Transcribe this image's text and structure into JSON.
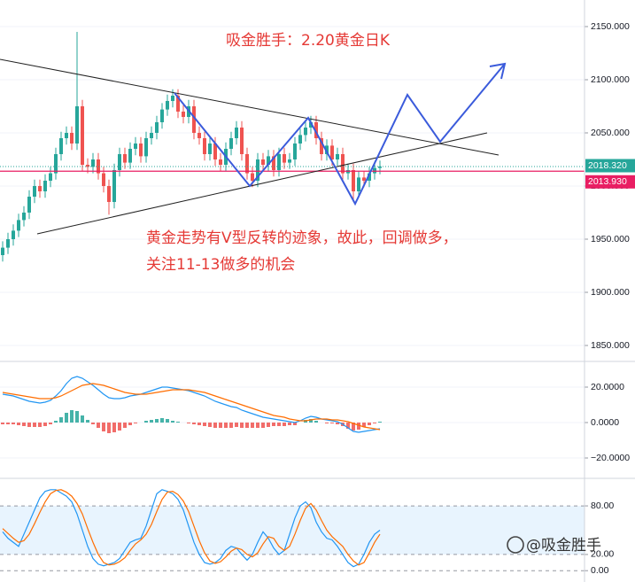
{
  "chart_data": [
    {
      "type": "candlestick",
      "title": "吸金胜手：2.20黄金日K",
      "annotations": [
        "黄金走势有V型反转的迹象，故此，回调做多，",
        "关注11-13做多的机会"
      ],
      "up_color": "#26a69a",
      "down_color": "#ef5350",
      "open": [
        1935,
        1942,
        1950,
        1958,
        1968,
        1975,
        1990,
        2000,
        1995,
        2005,
        2012,
        2030,
        2045,
        2050,
        2040,
        2075,
        2020,
        2018,
        2025,
        2012,
        2000,
        1985,
        2015,
        2030,
        2022,
        2035,
        2040,
        2028,
        2045,
        2050,
        2060,
        2072,
        2080,
        2085,
        2070,
        2065,
        2075,
        2050,
        2045,
        2030,
        2040,
        2025,
        2020,
        2035,
        2045,
        2055,
        2030,
        2012,
        2005,
        2025,
        2020,
        2028,
        2015,
        2030,
        2022,
        2025,
        2040,
        2048,
        2055,
        2060,
        2045,
        2030,
        2038,
        2025,
        2030,
        2012,
        2015,
        1995,
        2008,
        2005,
        2012,
        2017
      ],
      "high": [
        1948,
        1956,
        1964,
        1974,
        1981,
        1996,
        2006,
        2006,
        2011,
        2018,
        2036,
        2051,
        2056,
        2056,
        2145,
        2081,
        2026,
        2031,
        2031,
        2018,
        2006,
        2021,
        2036,
        2036,
        2041,
        2046,
        2046,
        2051,
        2056,
        2066,
        2078,
        2086,
        2091,
        2091,
        2076,
        2081,
        2081,
        2056,
        2051,
        2046,
        2046,
        2031,
        2041,
        2051,
        2061,
        2061,
        2036,
        2018,
        2031,
        2031,
        2034,
        2034,
        2036,
        2036,
        2031,
        2046,
        2054,
        2061,
        2066,
        2066,
        2051,
        2044,
        2044,
        2036,
        2036,
        2021,
        2021,
        2014,
        2014,
        2018,
        2023,
        2024
      ],
      "low": [
        1929,
        1936,
        1944,
        1952,
        1962,
        1969,
        1984,
        1989,
        1989,
        1999,
        2006,
        2024,
        2039,
        2034,
        2034,
        2014,
        2012,
        2012,
        2006,
        1994,
        1973,
        1979,
        2009,
        2016,
        2016,
        2029,
        2022,
        2022,
        2039,
        2044,
        2054,
        2066,
        2074,
        2064,
        2059,
        2059,
        2044,
        2039,
        2024,
        2024,
        2019,
        2014,
        2014,
        2029,
        2039,
        2024,
        2006,
        1999,
        1999,
        2014,
        2014,
        2009,
        2009,
        2016,
        2016,
        2019,
        2034,
        2042,
        2049,
        2039,
        2024,
        2024,
        2019,
        2019,
        2006,
        2006,
        1985,
        1989,
        1999,
        1999,
        2006,
        2011
      ],
      "close": [
        1942,
        1950,
        1958,
        1968,
        1975,
        1990,
        2000,
        1995,
        2005,
        2012,
        2030,
        2045,
        2050,
        2040,
        2075,
        2020,
        2018,
        2025,
        2012,
        2000,
        1985,
        2015,
        2030,
        2022,
        2035,
        2040,
        2028,
        2045,
        2050,
        2060,
        2072,
        2080,
        2085,
        2070,
        2065,
        2075,
        2050,
        2045,
        2030,
        2040,
        2025,
        2020,
        2035,
        2045,
        2055,
        2030,
        2012,
        2005,
        2025,
        2020,
        2028,
        2015,
        2030,
        2022,
        2025,
        2040,
        2048,
        2055,
        2060,
        2045,
        2030,
        2038,
        2025,
        2030,
        2012,
        2015,
        1995,
        2008,
        2005,
        2012,
        2017,
        2018.32
      ],
      "price_lines": [
        {
          "value": 2018.32,
          "label": "2018.320",
          "color": "#26a69a",
          "style": "dotted"
        },
        {
          "value": 2013.93,
          "label": "2013.930",
          "color": "#e91e63",
          "style": "solid"
        }
      ],
      "ylim": [
        1835,
        2175
      ],
      "yticks": [
        {
          "value": 2150,
          "label": "2150.000"
        },
        {
          "value": 2100,
          "label": "2100.000"
        },
        {
          "value": 2050,
          "label": "2050.000"
        },
        {
          "value": 2000,
          "label": "2000.000"
        },
        {
          "value": 1950,
          "label": "1950.000"
        },
        {
          "value": 1900,
          "label": "1900.000"
        },
        {
          "value": 1850,
          "label": "1850.000"
        }
      ],
      "grid": "solid"
    },
    {
      "type": "macd",
      "series": [
        {
          "color": "#2196f3",
          "values": [
            16,
            15.5,
            15,
            14,
            13,
            12,
            11.5,
            11,
            11.5,
            12.5,
            15,
            18,
            22,
            25,
            26,
            25,
            23,
            21,
            18.5,
            16,
            14,
            13.5,
            13.5,
            14,
            15,
            15.5,
            16,
            17,
            18,
            19,
            20,
            20,
            19.5,
            19,
            18.5,
            18,
            17,
            16,
            15,
            13.5,
            12,
            11,
            10,
            9,
            8.5,
            7,
            6,
            5,
            4,
            3,
            2.5,
            2,
            1.5,
            1,
            0.5,
            0,
            1,
            2.5,
            3.5,
            3,
            2,
            1.5,
            1,
            0.5,
            -1,
            -3,
            -5,
            -5.5,
            -5,
            -4.5,
            -4,
            -3.5
          ]
        },
        {
          "color": "#ff6d00",
          "values": [
            17,
            16.5,
            16,
            15.5,
            15,
            14.5,
            14,
            13.5,
            13.5,
            13.5,
            14,
            15,
            16.5,
            18,
            19.5,
            21,
            21.5,
            22,
            21.5,
            21,
            20,
            19,
            18,
            17,
            16.5,
            16,
            16,
            16,
            16.5,
            17,
            17.5,
            18,
            18.5,
            18.5,
            18.5,
            18.5,
            18,
            17.5,
            17,
            16,
            15,
            14,
            13,
            12,
            11,
            10,
            9,
            8,
            7,
            6,
            5,
            4,
            3.5,
            3,
            2,
            1.5,
            1,
            1,
            1.5,
            2,
            2,
            2,
            1.5,
            1.5,
            1,
            0.5,
            -0.5,
            -1.5,
            -2.5,
            -3,
            -3.5,
            -4
          ]
        }
      ],
      "histogram": {
        "up_color": "#26a69a",
        "down_color": "#ef5350",
        "values": [
          -1,
          -1,
          -1,
          -1.5,
          -2,
          -2.5,
          -2.5,
          -2.5,
          -2,
          -1,
          1,
          3,
          5.5,
          7,
          6.5,
          4,
          1.5,
          -1,
          -3,
          -5,
          -6,
          -5.5,
          -4.5,
          -3,
          -1.5,
          -0.5,
          0,
          1,
          1.5,
          2,
          2.5,
          2,
          1,
          0.5,
          0,
          -0.5,
          -1,
          -1.5,
          -2,
          -2.5,
          -3,
          -3,
          -3,
          -3,
          -2.5,
          -3,
          -3,
          -3,
          -3,
          -3,
          -2.5,
          -2,
          -2,
          -2,
          -1.5,
          -1.5,
          0,
          1.5,
          2,
          1,
          0,
          -0.5,
          -0.5,
          -1,
          -2,
          -3.5,
          -4.5,
          -4,
          -2.5,
          -1.5,
          -0.5,
          0.5
        ]
      },
      "ylim": [
        -31.5,
        34.5
      ],
      "yticks": [
        {
          "value": 20,
          "label": "20.0000"
        },
        {
          "value": 0,
          "label": "0.0000"
        },
        {
          "value": -20,
          "label": "−20.0000"
        }
      ],
      "grid": "solid"
    },
    {
      "type": "stochastic",
      "series": [
        {
          "color": "#2196f3",
          "values": [
            48,
            40,
            35,
            30,
            45,
            60,
            75,
            90,
            98,
            100,
            100,
            96,
            92,
            85,
            70,
            50,
            30,
            15,
            8,
            6,
            8,
            10,
            15,
            25,
            35,
            38,
            40,
            55,
            75,
            95,
            100,
            98,
            95,
            88,
            75,
            55,
            35,
            20,
            10,
            8,
            10,
            15,
            25,
            30,
            28,
            20,
            13,
            20,
            35,
            48,
            40,
            28,
            20,
            25,
            45,
            65,
            80,
            85,
            78,
            60,
            48,
            40,
            38,
            30,
            20,
            10,
            5,
            8,
            20,
            35,
            45,
            50
          ]
        },
        {
          "color": "#ff6d00",
          "values": [
            52,
            46,
            40,
            35,
            37,
            45,
            58,
            72,
            85,
            95,
            99,
            100,
            97,
            92,
            83,
            70,
            52,
            35,
            20,
            10,
            7,
            8,
            11,
            16,
            25,
            33,
            38,
            45,
            57,
            73,
            88,
            97,
            98,
            94,
            86,
            73,
            55,
            37,
            22,
            12,
            9,
            11,
            17,
            24,
            28,
            26,
            20,
            17,
            22,
            33,
            42,
            40,
            30,
            25,
            30,
            45,
            62,
            77,
            83,
            75,
            62,
            50,
            42,
            36,
            30,
            20,
            12,
            7,
            10,
            22,
            35,
            45
          ]
        }
      ],
      "band": true,
      "ylim": [
        -14,
        114
      ],
      "yticks": [
        {
          "value": 80,
          "label": "80.00"
        },
        {
          "value": 20,
          "label": "20.00"
        },
        {
          "value": 0,
          "label": "0.00"
        }
      ],
      "grid": "dashed"
    }
  ],
  "watermark": "@吸金胜手"
}
